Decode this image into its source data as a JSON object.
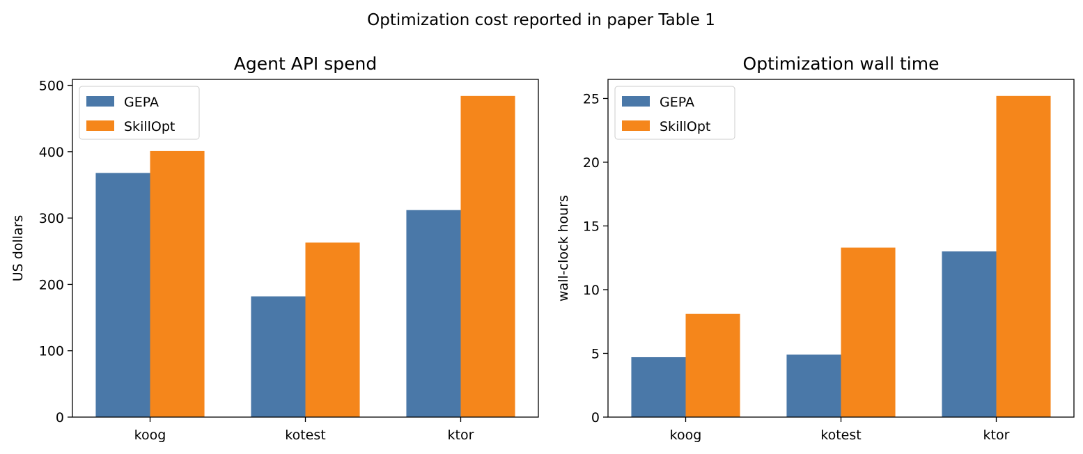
{
  "figure": {
    "suptitle": "Optimization cost reported in paper Table 1"
  },
  "colors": {
    "GEPA": "#4a78a8",
    "SkillOpt": "#f5861b"
  },
  "chart_data": [
    {
      "type": "bar",
      "title": "Agent API spend",
      "xlabel": "",
      "ylabel": "US dollars",
      "categories": [
        "koog",
        "kotest",
        "ktor"
      ],
      "series": [
        {
          "name": "GEPA",
          "values": [
            368,
            182,
            312
          ]
        },
        {
          "name": "SkillOpt",
          "values": [
            401,
            263,
            484
          ]
        }
      ],
      "ylim": [
        0,
        509
      ],
      "yticks": [
        0,
        100,
        200,
        300,
        400,
        500
      ],
      "legend": "top-left",
      "grid": false
    },
    {
      "type": "bar",
      "title": "Optimization wall time",
      "xlabel": "",
      "ylabel": "wall-clock hours",
      "categories": [
        "koog",
        "kotest",
        "ktor"
      ],
      "series": [
        {
          "name": "GEPA",
          "values": [
            4.7,
            4.9,
            13.0
          ]
        },
        {
          "name": "SkillOpt",
          "values": [
            8.1,
            13.3,
            25.2
          ]
        }
      ],
      "ylim": [
        0,
        26.5
      ],
      "yticks": [
        0,
        5,
        10,
        15,
        20,
        25
      ],
      "legend": "top-left",
      "grid": false
    }
  ]
}
